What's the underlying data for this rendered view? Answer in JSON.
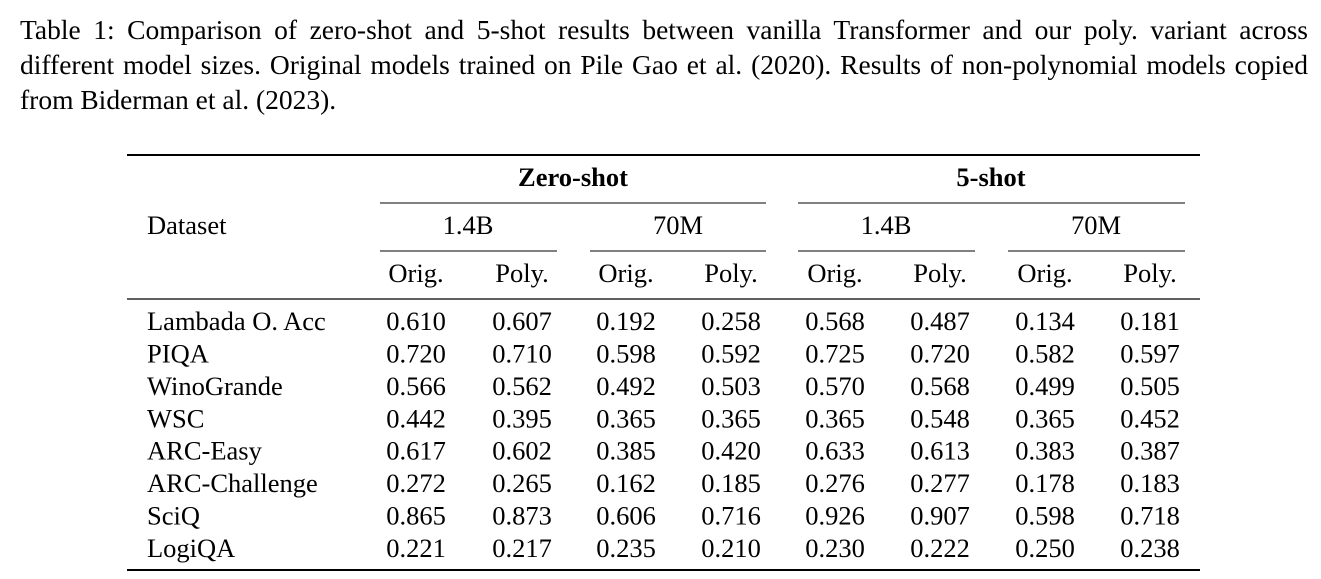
{
  "caption": "Table 1: Comparison of zero-shot and 5-shot results between vanilla Transformer and our poly. variant across different model sizes. Original models trained on Pile Gao et al. (2020). Results of non-polynomial models copied from Biderman et al. (2023).",
  "table": {
    "group_headers": [
      "Zero-shot",
      "5-shot"
    ],
    "size_headers": [
      "1.4B",
      "70M",
      "1.4B",
      "70M"
    ],
    "column_headers": [
      "Dataset",
      "Orig.",
      "Poly.",
      "Orig.",
      "Poly.",
      "Orig.",
      "Poly.",
      "Orig.",
      "Poly."
    ],
    "rows": [
      [
        "Lambada O. Acc",
        "0.610",
        "0.607",
        "0.192",
        "0.258",
        "0.568",
        "0.487",
        "0.134",
        "0.181"
      ],
      [
        "PIQA",
        "0.720",
        "0.710",
        "0.598",
        "0.592",
        "0.725",
        "0.720",
        "0.582",
        "0.597"
      ],
      [
        "WinoGrande",
        "0.566",
        "0.562",
        "0.492",
        "0.503",
        "0.570",
        "0.568",
        "0.499",
        "0.505"
      ],
      [
        "WSC",
        "0.442",
        "0.395",
        "0.365",
        "0.365",
        "0.365",
        "0.548",
        "0.365",
        "0.452"
      ],
      [
        "ARC-Easy",
        "0.617",
        "0.602",
        "0.385",
        "0.420",
        "0.633",
        "0.613",
        "0.383",
        "0.387"
      ],
      [
        "ARC-Challenge",
        "0.272",
        "0.265",
        "0.162",
        "0.185",
        "0.276",
        "0.277",
        "0.178",
        "0.183"
      ],
      [
        "SciQ",
        "0.865",
        "0.873",
        "0.606",
        "0.716",
        "0.926",
        "0.907",
        "0.598",
        "0.718"
      ],
      [
        "LogiQA",
        "0.221",
        "0.217",
        "0.235",
        "0.210",
        "0.230",
        "0.222",
        "0.250",
        "0.238"
      ]
    ]
  }
}
